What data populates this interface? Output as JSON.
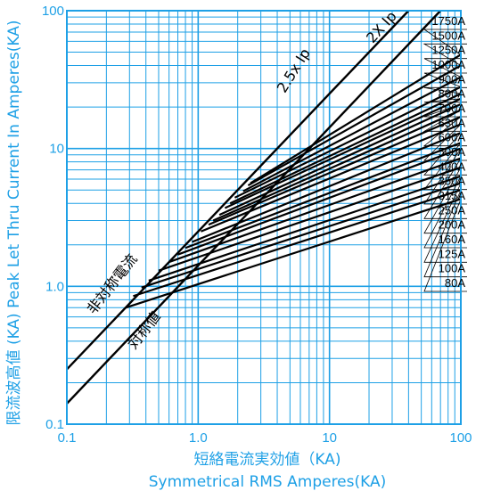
{
  "chart_data": {
    "type": "line",
    "scale": "log-log",
    "xlim": [
      0.1,
      100
    ],
    "ylim": [
      0.1,
      100
    ],
    "x_ticks": [
      "0.1",
      "1.0",
      "10",
      "100"
    ],
    "y_ticks": [
      "0.1",
      "1.0",
      "10",
      "100"
    ],
    "xlabel_cn": "短絡電流実効値（KA)",
    "xlabel_en": "Symmetrical RMS Amperes(KA)",
    "ylabel": "限流波高値 (KA) Peak Let Thru Current In Amperes(KA)",
    "grid": true,
    "reference_lines": [
      {
        "label": "2.5x Ip",
        "factor": 2.5,
        "points": [
          [
            0.1,
            0.25
          ],
          [
            40,
            100
          ]
        ]
      },
      {
        "label": "2X Ip",
        "factor": 1.414,
        "points": [
          [
            0.1,
            0.141
          ],
          [
            70,
            100
          ]
        ]
      }
    ],
    "annotations": [
      {
        "text": "非対称電流",
        "near_line": "2.5x Ip"
      },
      {
        "text": "対称値",
        "near_line": "2X Ip"
      }
    ],
    "series": [
      {
        "name": "1750A",
        "values": [
          [
            2.5,
            5.6
          ],
          [
            100,
            48
          ]
        ]
      },
      {
        "name": "1500A",
        "values": [
          [
            2.4,
            5.4
          ],
          [
            100,
            40
          ]
        ]
      },
      {
        "name": "1250A",
        "values": [
          [
            2.2,
            4.9
          ],
          [
            100,
            33
          ]
        ]
      },
      {
        "name": "1000A",
        "values": [
          [
            1.9,
            4.4
          ],
          [
            100,
            28
          ]
        ]
      },
      {
        "name": "900A",
        "values": [
          [
            1.75,
            4.0
          ],
          [
            100,
            25
          ]
        ]
      },
      {
        "name": "800A",
        "values": [
          [
            1.6,
            3.7
          ],
          [
            100,
            23
          ]
        ]
      },
      {
        "name": "700A",
        "values": [
          [
            1.45,
            3.3
          ],
          [
            100,
            21
          ]
        ]
      },
      {
        "name": "630A",
        "values": [
          [
            1.3,
            3.0
          ],
          [
            100,
            19
          ]
        ]
      },
      {
        "name": "600A",
        "values": [
          [
            1.2,
            2.8
          ],
          [
            100,
            17
          ]
        ]
      },
      {
        "name": "500A",
        "values": [
          [
            1.05,
            2.5
          ],
          [
            100,
            15
          ]
        ]
      },
      {
        "name": "400A",
        "values": [
          [
            0.9,
            2.1
          ],
          [
            100,
            13
          ]
        ]
      },
      {
        "name": "350A",
        "values": [
          [
            0.8,
            1.9
          ],
          [
            100,
            11
          ]
        ]
      },
      {
        "name": "315A",
        "values": [
          [
            0.7,
            1.7
          ],
          [
            100,
            10
          ]
        ]
      },
      {
        "name": "250A",
        "values": [
          [
            0.6,
            1.5
          ],
          [
            100,
            8.5
          ]
        ]
      },
      {
        "name": "200A",
        "values": [
          [
            0.5,
            1.3
          ],
          [
            100,
            7.3
          ]
        ]
      },
      {
        "name": "160A",
        "values": [
          [
            0.42,
            1.1
          ],
          [
            100,
            6.3
          ]
        ]
      },
      {
        "name": "125A",
        "values": [
          [
            0.37,
            0.98
          ],
          [
            100,
            5.6
          ]
        ]
      },
      {
        "name": "100A",
        "values": [
          [
            0.32,
            0.85
          ],
          [
            100,
            5.0
          ]
        ]
      },
      {
        "name": "80A",
        "values": [
          [
            0.28,
            0.7
          ],
          [
            100,
            4.3
          ]
        ]
      }
    ]
  }
}
